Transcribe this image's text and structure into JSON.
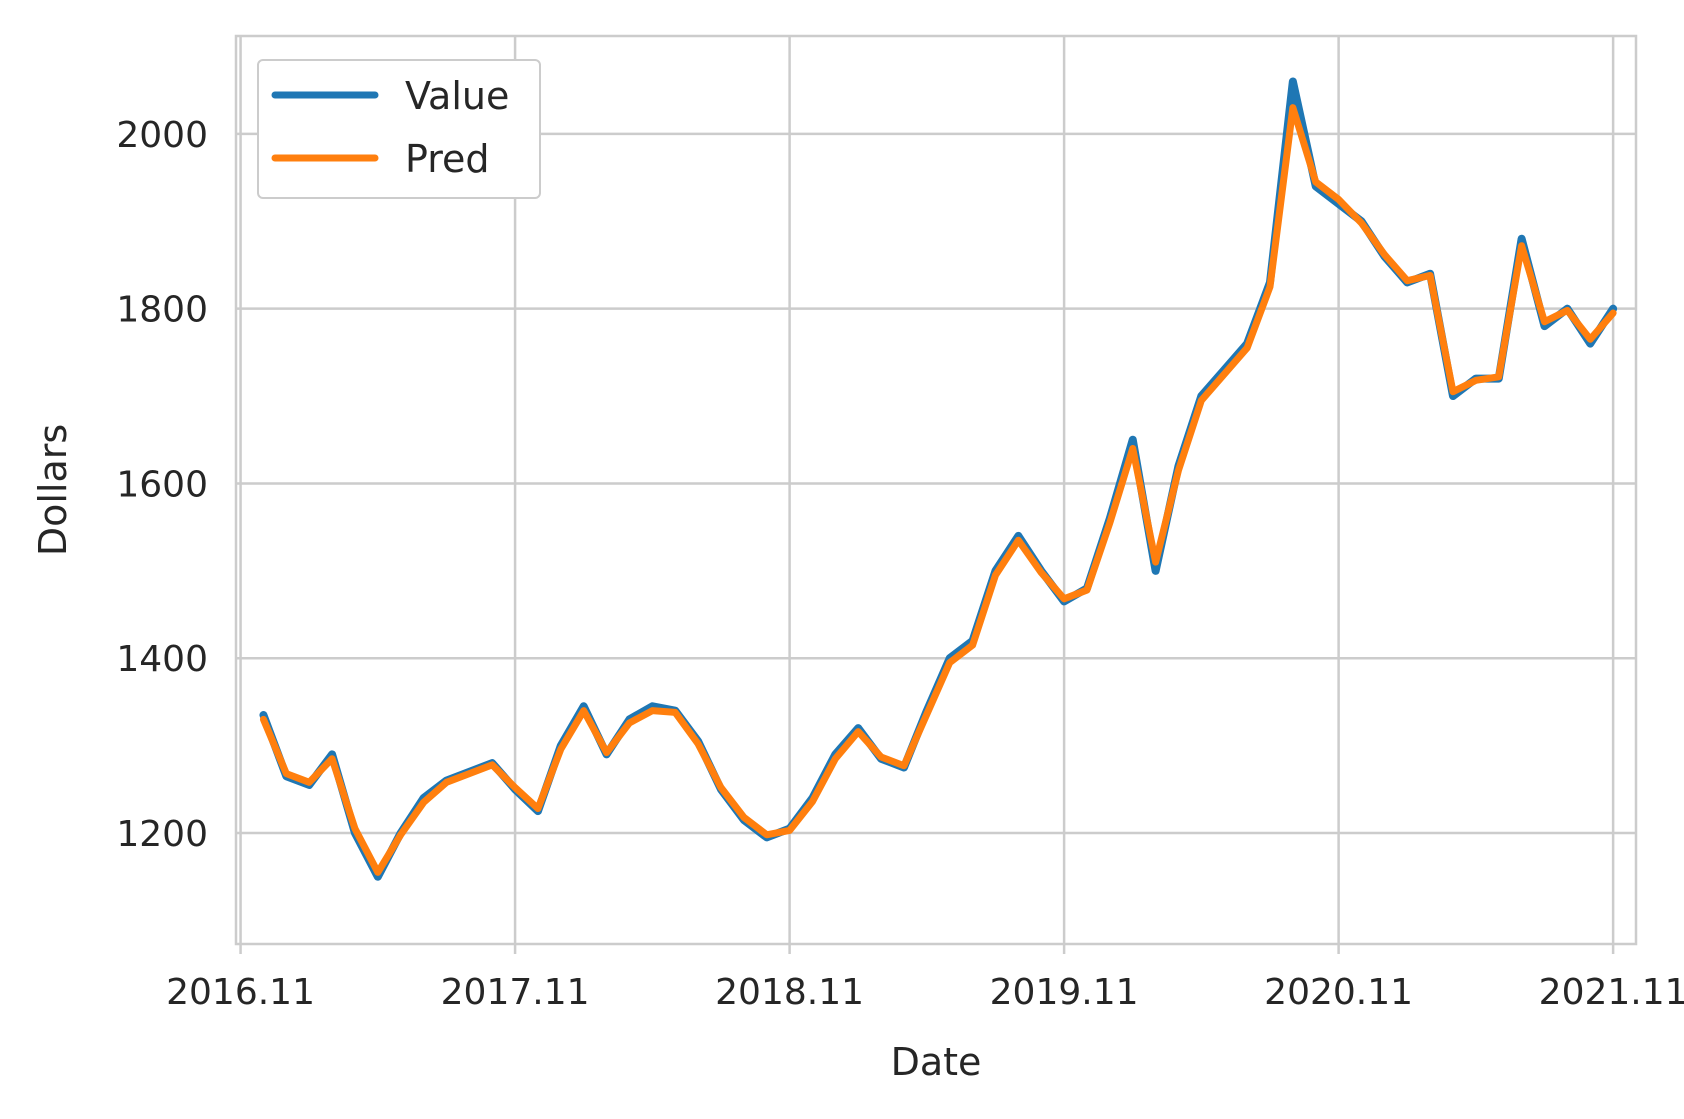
{
  "chart_data": {
    "type": "line",
    "title": "",
    "xlabel": "Date",
    "ylabel": "Dollars",
    "x_ticks": [
      "2016.11",
      "2017.11",
      "2018.11",
      "2019.11",
      "2020.11",
      "2021.11"
    ],
    "y_ticks": [
      1200,
      1400,
      1600,
      1800,
      2000
    ],
    "xlim": [
      "2016.11",
      "2021.12"
    ],
    "ylim": [
      1073,
      2112
    ],
    "grid": true,
    "legend": "top-left",
    "x": [
      "2016.12",
      "2017.01",
      "2017.02",
      "2017.03",
      "2017.04",
      "2017.05",
      "2017.06",
      "2017.07",
      "2017.08",
      "2017.09",
      "2017.10",
      "2017.11",
      "2017.12",
      "2018.01",
      "2018.02",
      "2018.03",
      "2018.04",
      "2018.05",
      "2018.06",
      "2018.07",
      "2018.08",
      "2018.09",
      "2018.10",
      "2018.11",
      "2018.12",
      "2019.01",
      "2019.02",
      "2019.03",
      "2019.04",
      "2019.05",
      "2019.06",
      "2019.07",
      "2019.08",
      "2019.09",
      "2019.10",
      "2019.11",
      "2019.12",
      "2020.01",
      "2020.02",
      "2020.03",
      "2020.04",
      "2020.05",
      "2020.06",
      "2020.07",
      "2020.08",
      "2020.09",
      "2020.10",
      "2020.11",
      "2020.12",
      "2021.01",
      "2021.02",
      "2021.03",
      "2021.04",
      "2021.05",
      "2021.06",
      "2021.07",
      "2021.08",
      "2021.09",
      "2021.10",
      "2021.11"
    ],
    "series": [
      {
        "name": "Value",
        "color": "#1f77b4",
        "values": [
          1335,
          1265,
          1255,
          1290,
          1200,
          1150,
          1200,
          1240,
          1260,
          1270,
          1280,
          1250,
          1225,
          1300,
          1345,
          1290,
          1330,
          1345,
          1340,
          1305,
          1250,
          1215,
          1195,
          1205,
          1240,
          1290,
          1320,
          1285,
          1275,
          1340,
          1400,
          1420,
          1500,
          1540,
          1500,
          1465,
          1480,
          1560,
          1650,
          1500,
          1620,
          1700,
          1730,
          1760,
          1830,
          2060,
          1940,
          1920,
          1900,
          1860,
          1830,
          1840,
          1700,
          1720,
          1720,
          1880,
          1780,
          1800,
          1760,
          1800
        ]
      },
      {
        "name": "Pred",
        "color": "#ff7f0e",
        "values": [
          1330,
          1268,
          1258,
          1285,
          1205,
          1155,
          1198,
          1235,
          1258,
          1268,
          1278,
          1252,
          1228,
          1296,
          1340,
          1292,
          1326,
          1340,
          1338,
          1302,
          1252,
          1218,
          1198,
          1203,
          1236,
          1285,
          1316,
          1287,
          1277,
          1336,
          1395,
          1415,
          1495,
          1535,
          1498,
          1468,
          1478,
          1555,
          1640,
          1510,
          1615,
          1695,
          1725,
          1755,
          1825,
          2030,
          1945,
          1925,
          1898,
          1862,
          1832,
          1838,
          1705,
          1718,
          1722,
          1872,
          1785,
          1798,
          1765,
          1795
        ]
      }
    ]
  }
}
